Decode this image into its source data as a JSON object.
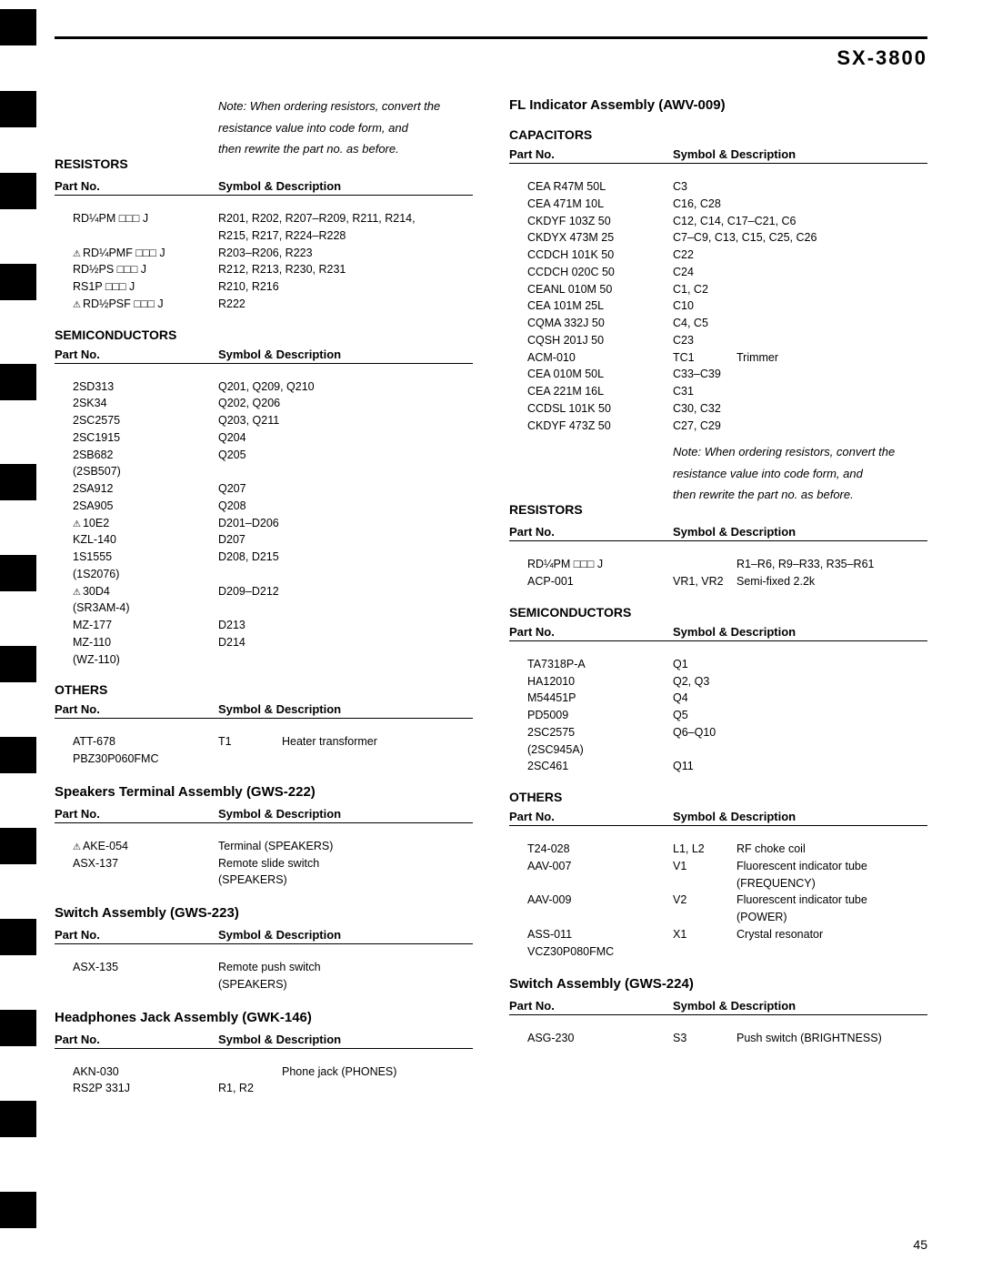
{
  "model": "SX-3800",
  "pageNum": "45",
  "note": {
    "label": "Note:",
    "line1": "When ordering resistors, convert the",
    "line2": "resistance value into code form, and",
    "line3": "then rewrite the part no. as before."
  },
  "headers": {
    "part": "Part No.",
    "desc": "Symbol & Description"
  },
  "left": {
    "resistors": {
      "title": "RESISTORS",
      "rows": [
        {
          "p": "RD¼PM □□□ J",
          "d": "R201, R202, R207–R209, R211, R214,"
        },
        {
          "p": "",
          "d": "R215, R217, R224–R228"
        },
        {
          "p": "RD¼PMF □□□ J",
          "d": "R203–R206, R223",
          "warn": true
        },
        {
          "p": "RD½PS □□□ J",
          "d": "R212, R213, R230, R231"
        },
        {
          "p": "RS1P □□□ J",
          "d": "R210, R216"
        },
        {
          "p": "",
          "d": ""
        },
        {
          "p": "RD½PSF □□□ J",
          "d": "R222",
          "warn": true
        }
      ]
    },
    "semiconductors": {
      "title": "SEMICONDUCTORS",
      "rows": [
        {
          "p": "2SD313",
          "d": "Q201, Q209, Q210"
        },
        {
          "p": "2SK34",
          "d": "Q202, Q206"
        },
        {
          "p": "2SC2575",
          "d": "Q203, Q211"
        },
        {
          "p": "2SC1915",
          "d": "Q204"
        },
        {
          "p": "2SB682",
          "d": "Q205"
        },
        {
          "p": "(2SB507)",
          "d": ""
        },
        {
          "p": "2SA912",
          "d": "Q207"
        },
        {
          "p": "2SA905",
          "d": "Q208"
        },
        {
          "p": "",
          "d": ""
        },
        {
          "p": "10E2",
          "d": "D201–D206",
          "warn": true
        },
        {
          "p": "KZL-140",
          "d": "D207"
        },
        {
          "p": "1S1555",
          "d": "D208, D215"
        },
        {
          "p": "(1S2076)",
          "d": ""
        },
        {
          "p": "30D4",
          "d": "D209–D212",
          "warn": true
        },
        {
          "p": "(SR3AM-4)",
          "d": ""
        },
        {
          "p": "",
          "d": ""
        },
        {
          "p": "MZ-177",
          "d": "D213"
        },
        {
          "p": "MZ-110",
          "d": "D214"
        },
        {
          "p": "(WZ-110)",
          "d": ""
        }
      ]
    },
    "others": {
      "title": "OTHERS",
      "rows": [
        {
          "p": "ATT-678",
          "s": "T1",
          "d": "Heater transformer"
        },
        {
          "p": "PBZ30P060FMC",
          "s": "",
          "d": ""
        }
      ]
    },
    "speakers": {
      "title": "Speakers Terminal Assembly (GWS-222)",
      "rows": [
        {
          "p": "AKE-054",
          "d": "Terminal (SPEAKERS)",
          "warn": true
        },
        {
          "p": "ASX-137",
          "d": "Remote slide switch"
        },
        {
          "p": "",
          "d": "(SPEAKERS)"
        }
      ]
    },
    "switch": {
      "title": "Switch Assembly (GWS-223)",
      "rows": [
        {
          "p": "ASX-135",
          "d": "Remote push switch"
        },
        {
          "p": "",
          "d": "(SPEAKERS)"
        }
      ]
    },
    "headphones": {
      "title": "Headphones Jack Assembly (GWK-146)",
      "rows": [
        {
          "p": "AKN-030",
          "s": "",
          "d": "Phone jack (PHONES)"
        },
        {
          "p": "RS2P 331J",
          "s": "R1, R2",
          "d": ""
        }
      ]
    }
  },
  "right": {
    "fl": {
      "title": "FL Indicator Assembly (AWV-009)"
    },
    "capacitors": {
      "title": "CAPACITORS",
      "rows": [
        {
          "p": "CEA R47M 50L",
          "d": "C3"
        },
        {
          "p": "CEA 471M 10L",
          "d": "C16, C28"
        },
        {
          "p": "CKDYF 103Z 50",
          "d": "C12, C14, C17–C21, C6"
        },
        {
          "p": "CKDYX 473M 25",
          "d": "C7–C9, C13, C15, C25, C26"
        },
        {
          "p": "CCDCH 101K 50",
          "d": "C22"
        },
        {
          "p": "",
          "d": ""
        },
        {
          "p": "CCDCH 020C 50",
          "d": "C24"
        },
        {
          "p": "CEANL 010M 50",
          "d": "C1, C2"
        },
        {
          "p": "CEA 101M 25L",
          "d": "C10"
        },
        {
          "p": "CQMA 332J 50",
          "d": "C4, C5"
        },
        {
          "p": "CQSH 201J 50",
          "d": "C23"
        },
        {
          "p": "",
          "d": ""
        },
        {
          "p": "ACM-010",
          "s": "TC1",
          "d": "Trimmer"
        },
        {
          "p": "CEA 010M 50L",
          "s": "C33–C39",
          "d": ""
        },
        {
          "p": "CEA 221M 16L",
          "s": "C31",
          "d": ""
        },
        {
          "p": "CCDSL 101K 50",
          "s": "C30, C32",
          "d": ""
        },
        {
          "p": "CKDYF 473Z 50",
          "s": "C27, C29",
          "d": ""
        }
      ]
    },
    "resistors": {
      "title": "RESISTORS",
      "rows": [
        {
          "p": "RD¼PM □□□ J",
          "s": "",
          "d": "R1–R6, R9–R33, R35–R61"
        },
        {
          "p": "ACP-001",
          "s": "VR1, VR2",
          "d": "Semi-fixed 2.2k"
        }
      ]
    },
    "semiconductors": {
      "title": "SEMICONDUCTORS",
      "rows": [
        {
          "p": "TA7318P-A",
          "d": "Q1"
        },
        {
          "p": "HA12010",
          "d": "Q2, Q3"
        },
        {
          "p": "M54451P",
          "d": "Q4"
        },
        {
          "p": "PD5009",
          "d": "Q5"
        },
        {
          "p": "2SC2575",
          "d": "Q6–Q10"
        },
        {
          "p": "(2SC945A)",
          "d": ""
        },
        {
          "p": "",
          "d": ""
        },
        {
          "p": "2SC461",
          "d": "Q11"
        }
      ]
    },
    "others": {
      "title": "OTHERS",
      "rows": [
        {
          "p": "T24-028",
          "s": "L1, L2",
          "d": "RF choke coil"
        },
        {
          "p": "AAV-007",
          "s": "V1",
          "d": "Fluorescent indicator tube"
        },
        {
          "p": "",
          "s": "",
          "d": "(FREQUENCY)"
        },
        {
          "p": "AAV-009",
          "s": "V2",
          "d": "Fluorescent indicator tube"
        },
        {
          "p": "",
          "s": "",
          "d": "(POWER)"
        },
        {
          "p": "ASS-011",
          "s": "X1",
          "d": "Crystal resonator"
        },
        {
          "p": "VCZ30P080FMC",
          "s": "",
          "d": ""
        }
      ]
    },
    "switch": {
      "title": "Switch Assembly (GWS-224)",
      "rows": [
        {
          "p": "ASG-230",
          "s": "S3",
          "d": "Push switch (BRIGHTNESS)"
        }
      ]
    }
  },
  "tabPositions": [
    10,
    100,
    190,
    290,
    400,
    510,
    610,
    710,
    810,
    910,
    1010,
    1110,
    1210,
    1310
  ]
}
